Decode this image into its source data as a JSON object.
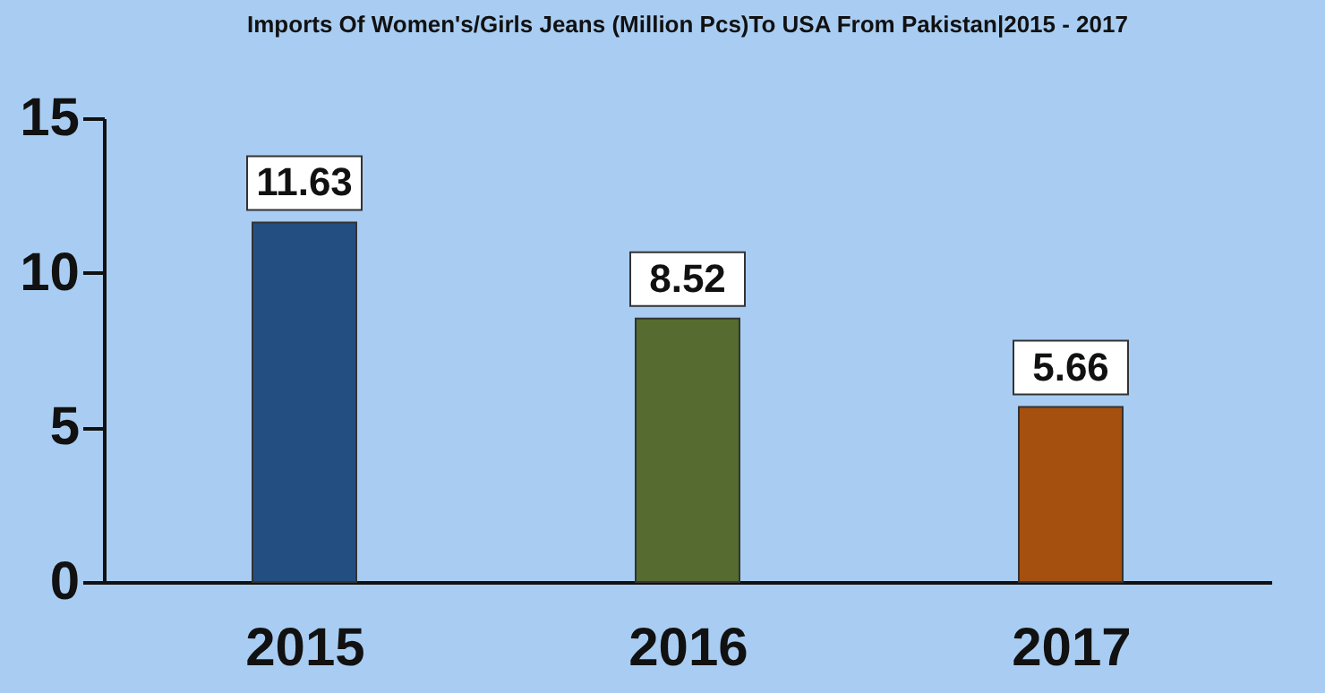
{
  "chart_data": {
    "type": "bar",
    "title": "Imports Of Women's/Girls Jeans (Million Pcs)To USA From Pakistan|2015 - 2017",
    "categories": [
      "2015",
      "2016",
      "2017"
    ],
    "values": [
      11.63,
      8.52,
      5.66
    ],
    "colors": [
      "#234e82",
      "#556b2f",
      "#a5500e"
    ],
    "ylim": [
      0,
      15
    ],
    "yticks": [
      0,
      5,
      10,
      15
    ],
    "grid": false,
    "data_labels": true
  }
}
